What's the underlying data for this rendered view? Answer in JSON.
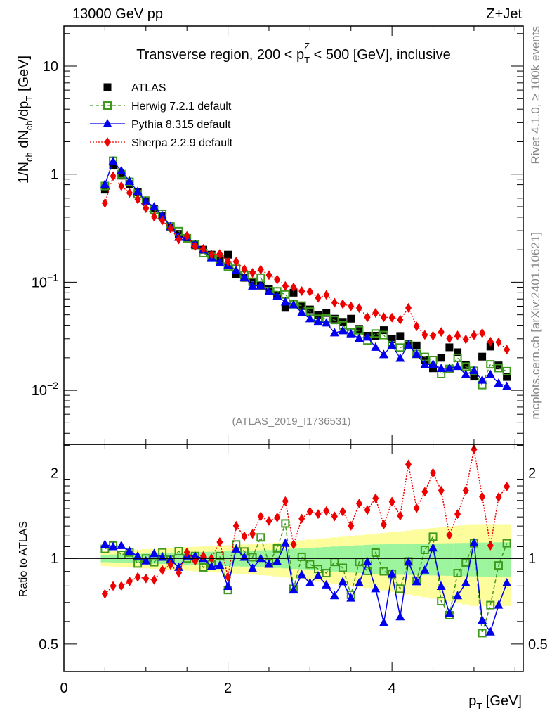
{
  "chart_data": {
    "type": "scatter",
    "header_left": "13000 GeV pp",
    "header_right": "Z+Jet",
    "title_parts": [
      {
        "t": "Transverse region, 200 < p",
        "s": ""
      },
      {
        "t": "T",
        "s": "sub"
      },
      {
        "t": "Z",
        "s": "sup"
      },
      {
        "t": " < 500 [GeV], inclusive",
        "s": ""
      }
    ],
    "ylabel_parts": [
      {
        "t": "1/N",
        "s": ""
      },
      {
        "t": "ch",
        "s": "sub"
      },
      {
        "t": " dN",
        "s": ""
      },
      {
        "t": "ch",
        "s": "sub"
      },
      {
        "t": "/dp",
        "s": ""
      },
      {
        "t": "T",
        "s": "sub"
      },
      {
        "t": " [GeV]",
        "s": ""
      }
    ],
    "xlabel_parts": [
      {
        "t": "p",
        "s": ""
      },
      {
        "t": "T",
        "s": "sub"
      },
      {
        "t": " [GeV]",
        "s": ""
      }
    ],
    "ratio_ylabel": "Ratio to ATLAS",
    "analysis_id": "(ATLAS_2019_I1736531)",
    "side_text_top": "Rivet 4.1.0, ≥ 100k events",
    "side_text_bottom": "mcplots.cern.ch [arXiv:2401.10621]",
    "xlim": [
      0,
      5.6
    ],
    "ylim": [
      0.00316,
      23.5
    ],
    "yscale": "log",
    "ratio_ylim": [
      0.4,
      2.52
    ],
    "ratio_yscale": "log",
    "x_ticks": [
      {
        "v": 0,
        "label": "0"
      },
      {
        "v": 2,
        "label": "2"
      },
      {
        "v": 4,
        "label": "4"
      }
    ],
    "y_ticks": [
      {
        "v": 0.01,
        "base": "10",
        "exp": "−2"
      },
      {
        "v": 0.1,
        "base": "10",
        "exp": "−1"
      },
      {
        "v": 1,
        "base": "1",
        "exp": ""
      },
      {
        "v": 10,
        "base": "10",
        "exp": ""
      }
    ],
    "ratio_ticks": [
      {
        "v": 0.5,
        "label": "0.5"
      },
      {
        "v": 1,
        "label": "1"
      },
      {
        "v": 2,
        "label": "2"
      }
    ],
    "legend_position": "top-left",
    "x": [
      0.5,
      0.6,
      0.7,
      0.8,
      0.9,
      1.0,
      1.1,
      1.2,
      1.3,
      1.4,
      1.5,
      1.6,
      1.7,
      1.8,
      1.9,
      2.0,
      2.1,
      2.2,
      2.3,
      2.4,
      2.5,
      2.6,
      2.7,
      2.8,
      2.9,
      3.0,
      3.1,
      3.2,
      3.3,
      3.4,
      3.5,
      3.6,
      3.7,
      3.8,
      3.9,
      4.0,
      4.1,
      4.2,
      4.3,
      4.4,
      4.5,
      4.6,
      4.7,
      4.8,
      4.9,
      5.0,
      5.1,
      5.2,
      5.3,
      5.4
    ],
    "data": {
      "name": "ATLAS",
      "color": "#000000",
      "values": [
        0.72,
        1.2,
        0.97,
        0.81,
        0.68,
        0.57,
        0.48,
        0.41,
        0.33,
        0.28,
        0.255,
        0.22,
        0.2,
        0.18,
        0.16,
        0.18,
        0.119,
        0.11,
        0.1,
        0.093,
        0.086,
        0.076,
        0.058,
        0.08,
        0.06,
        0.056,
        0.05,
        0.052,
        0.046,
        0.043,
        0.046,
        0.037,
        0.032,
        0.032,
        0.036,
        0.0297,
        0.0318,
        0.027,
        0.026,
        0.019,
        0.016,
        0.02,
        0.025,
        0.0225,
        0.0171,
        0.0134,
        0.0205,
        0.0254,
        0.017,
        0.0133
      ]
    },
    "series": [
      {
        "name": "Herwig 7.2.1 default",
        "color": "#3d9a1c",
        "marker": "open-square",
        "line": "dashed",
        "ratio": [
          1.08,
          1.11,
          1.03,
          1.05,
          0.96,
          1.0,
          0.97,
          1.05,
          0.99,
          1.06,
          1.0,
          1.02,
          0.93,
          0.954,
          1.019,
          0.774,
          1.12,
          1.058,
          1.01,
          1.186,
          0.963,
          1.085,
          1.328,
          0.782,
          1.013,
          0.954,
          0.918,
          0.888,
          0.972,
          0.927,
          0.745,
          0.972,
          0.904,
          1.048,
          0.901,
          0.881,
          0.782,
          0.976,
          0.835,
          1.072,
          1.192,
          0.707,
          0.631,
          0.888,
          0.968,
          1.131,
          0.546,
          0.685,
          0.945,
          1.131
        ]
      },
      {
        "name": "Pythia 8.315 default",
        "color": "#0000ee",
        "marker": "triangle",
        "line": "solid",
        "ratio": [
          1.12,
          1.1,
          1.11,
          1.06,
          1.02,
          0.98,
          1.04,
          1.01,
          0.99,
          0.93,
          1.02,
          1.02,
          1.0,
          0.936,
          0.945,
          0.797,
          1.079,
          1.01,
          0.922,
          1.0,
          0.954,
          0.976,
          1.131,
          0.774,
          0.876,
          0.82,
          0.868,
          0.807,
          0.739,
          0.828,
          0.725,
          0.82,
          0.972,
          0.782,
          0.594,
          0.881,
          0.623,
          0.972,
          0.828,
          0.91,
          1.089,
          0.797,
          0.641,
          0.739,
          0.82,
          1.135,
          0.606,
          0.551,
          0.685,
          0.82
        ]
      },
      {
        "name": "Sherpa 2.2.9 default",
        "color": "#ee0000",
        "marker": "diamond",
        "line": "dotted",
        "ratio": [
          0.75,
          0.8,
          0.8,
          0.83,
          0.86,
          0.85,
          0.84,
          0.91,
          0.95,
          0.89,
          1.05,
          0.98,
          1.02,
          1.0,
          1.142,
          0.86,
          1.303,
          1.197,
          1.22,
          1.406,
          1.354,
          1.393,
          1.591,
          1.12,
          1.38,
          1.461,
          1.433,
          1.469,
          1.406,
          1.461,
          1.303,
          1.56,
          1.48,
          1.628,
          1.316,
          1.584,
          1.414,
          2.143,
          1.502,
          1.716,
          2.0,
          1.733,
          1.208,
          1.433,
          1.733,
          2.42,
          1.65,
          1.11,
          1.642,
          1.79
        ]
      }
    ],
    "uncertainty_band_inner": {
      "color": "#9cf59c",
      "x": [
        0.5,
        2.5,
        3.8,
        5.4
      ],
      "halfwidth": [
        0.03,
        0.07,
        0.12,
        0.14
      ]
    },
    "uncertainty_band_outer": {
      "color": "#fdfd9c",
      "x": [
        0.5,
        2.5,
        3.8,
        5.0,
        5.4
      ],
      "halfwidth": [
        0.06,
        0.13,
        0.22,
        0.32,
        0.32
      ]
    }
  }
}
